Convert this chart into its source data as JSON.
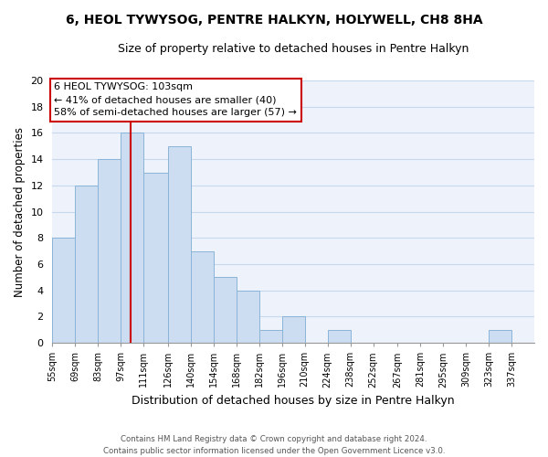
{
  "title": "6, HEOL TYWYSOG, PENTRE HALKYN, HOLYWELL, CH8 8HA",
  "subtitle": "Size of property relative to detached houses in Pentre Halkyn",
  "xlabel": "Distribution of detached houses by size in Pentre Halkyn",
  "ylabel": "Number of detached properties",
  "bin_edges": [
    55,
    69,
    83,
    97,
    111,
    126,
    140,
    154,
    168,
    182,
    196,
    210,
    224,
    238,
    252,
    267,
    281,
    295,
    309,
    323,
    337,
    351
  ],
  "bin_labels": [
    "55sqm",
    "69sqm",
    "83sqm",
    "97sqm",
    "111sqm",
    "126sqm",
    "140sqm",
    "154sqm",
    "168sqm",
    "182sqm",
    "196sqm",
    "210sqm",
    "224sqm",
    "238sqm",
    "252sqm",
    "267sqm",
    "281sqm",
    "295sqm",
    "309sqm",
    "323sqm",
    "337sqm"
  ],
  "counts": [
    8,
    12,
    14,
    16,
    13,
    15,
    7,
    5,
    4,
    1,
    2,
    0,
    1,
    0,
    0,
    0,
    0,
    0,
    0,
    1,
    0
  ],
  "bar_color": "#ccddf2",
  "bar_edge_color": "#8ab4d8",
  "grid_color": "#c8d8ec",
  "vline_x": 103,
  "vline_color": "#cc0000",
  "annotation_title": "6 HEOL TYWYSOG: 103sqm",
  "annotation_line1": "← 41% of detached houses are smaller (40)",
  "annotation_line2": "58% of semi-detached houses are larger (57) →",
  "annotation_box_color": "#ffffff",
  "annotation_box_edge": "#cc0000",
  "footer_line1": "Contains HM Land Registry data © Crown copyright and database right 2024.",
  "footer_line2": "Contains public sector information licensed under the Open Government Licence v3.0.",
  "ylim": [
    0,
    20
  ],
  "yticks": [
    0,
    2,
    4,
    6,
    8,
    10,
    12,
    14,
    16,
    18,
    20
  ],
  "background_color": "#ffffff",
  "plot_background_color": "#eef3fb"
}
